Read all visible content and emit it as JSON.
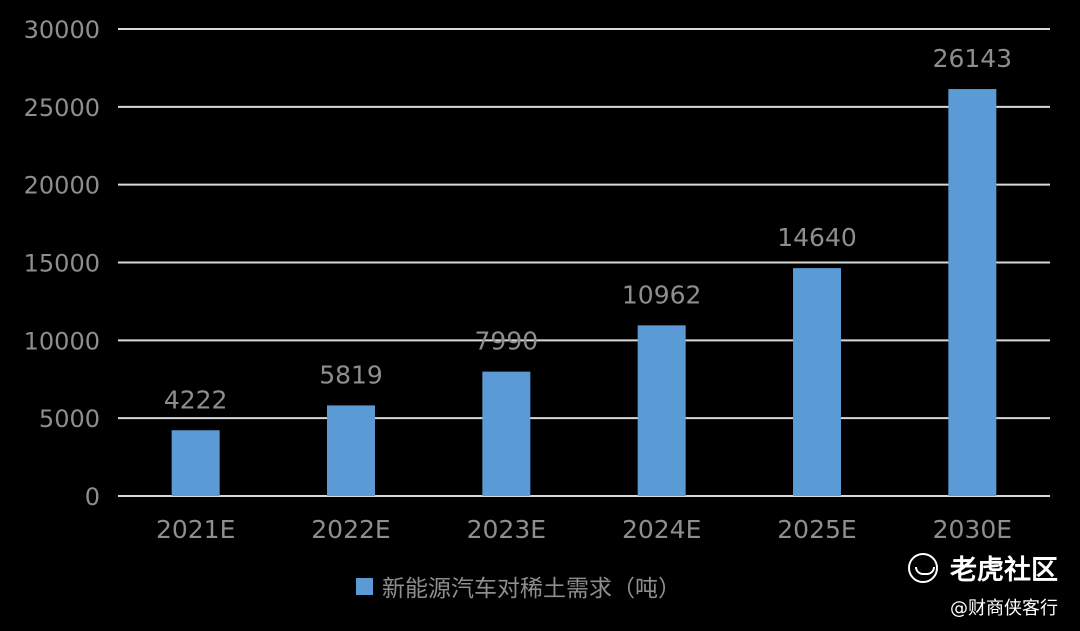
{
  "chart_data": {
    "type": "bar",
    "categories": [
      "2021E",
      "2022E",
      "2023E",
      "2024E",
      "2025E",
      "2030E"
    ],
    "series": [
      {
        "name": "新能源汽车对稀土需求（吨）",
        "values": [
          4222,
          5819,
          7990,
          10962,
          14640,
          26143
        ],
        "data_labels": [
          "4222",
          "5819",
          "7990",
          "10962",
          "14640",
          "26143"
        ]
      }
    ],
    "y_ticks": [
      "0",
      "5000",
      "10000",
      "15000",
      "20000",
      "25000",
      "30000"
    ],
    "ylim": [
      0,
      30000
    ],
    "grid": true,
    "legend_position": "bottom",
    "colors": {
      "bar": "#5b9bd5",
      "grid": "#d9d9d9",
      "text": "#8e8e8e",
      "background": "#000000"
    }
  },
  "watermark": {
    "brand": "老虎社区",
    "handle": "@财商侠客行",
    "logo_icon": "tiger-logo-icon"
  }
}
